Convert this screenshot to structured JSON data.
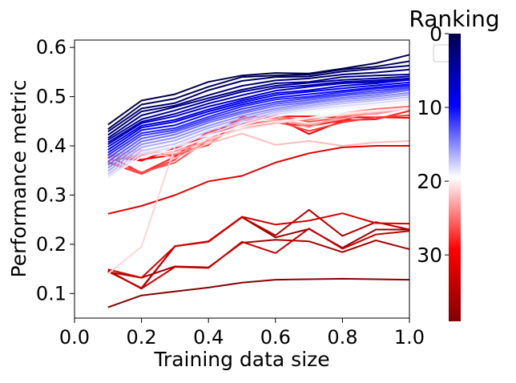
{
  "chart_data": {
    "type": "line",
    "title": "",
    "xlabel": "Training data size",
    "ylabel": "Performance metric",
    "xlim": [
      0.0,
      1.0
    ],
    "ylim": [
      0.05,
      0.615
    ],
    "xticks": [
      "0.0",
      "0.2",
      "0.4",
      "0.6",
      "0.8",
      "1.0"
    ],
    "yticks": [
      "0.1",
      "0.2",
      "0.3",
      "0.4",
      "0.5",
      "0.6"
    ],
    "grid": false,
    "legend": "upper-right, empty",
    "x": [
      0.1,
      0.2,
      0.3,
      0.4,
      0.5,
      0.6,
      0.7,
      0.8,
      0.9,
      1.0
    ],
    "colorbar": {
      "title": "Ranking",
      "ticks": [
        "0",
        "10",
        "20",
        "30"
      ],
      "range": [
        0,
        39
      ],
      "colormap": "seismic_r",
      "colors": [
        "#00004d",
        "#0000ff",
        "#ffffff",
        "#ff0000",
        "#800000"
      ]
    },
    "series": [
      {
        "rank": 0,
        "color": "#00004d",
        "values": [
          0.443,
          0.492,
          0.505,
          0.53,
          0.543,
          0.548,
          0.547,
          0.557,
          0.568,
          0.585
        ]
      },
      {
        "rank": 1,
        "color": "#000058",
        "values": [
          0.434,
          0.484,
          0.496,
          0.52,
          0.54,
          0.543,
          0.545,
          0.555,
          0.561,
          0.572
        ]
      },
      {
        "rank": 2,
        "color": "#000066",
        "values": [
          0.429,
          0.476,
          0.487,
          0.513,
          0.532,
          0.54,
          0.541,
          0.551,
          0.557,
          0.563
        ]
      },
      {
        "rank": 3,
        "color": "#000076",
        "values": [
          0.422,
          0.47,
          0.482,
          0.503,
          0.522,
          0.533,
          0.537,
          0.545,
          0.549,
          0.555
        ]
      },
      {
        "rank": 4,
        "color": "#000088",
        "values": [
          0.416,
          0.462,
          0.479,
          0.497,
          0.514,
          0.527,
          0.53,
          0.54,
          0.543,
          0.545
        ]
      },
      {
        "rank": 5,
        "color": "#00009a",
        "values": [
          0.412,
          0.454,
          0.472,
          0.492,
          0.51,
          0.522,
          0.528,
          0.534,
          0.537,
          0.541
        ]
      },
      {
        "rank": 6,
        "color": "#0000ae",
        "values": [
          0.407,
          0.449,
          0.465,
          0.486,
          0.503,
          0.518,
          0.523,
          0.53,
          0.533,
          0.537
        ]
      },
      {
        "rank": 7,
        "color": "#0000c4",
        "values": [
          0.403,
          0.446,
          0.46,
          0.48,
          0.496,
          0.512,
          0.52,
          0.527,
          0.53,
          0.536
        ]
      },
      {
        "rank": 8,
        "color": "#0000d8",
        "values": [
          0.398,
          0.441,
          0.453,
          0.474,
          0.492,
          0.507,
          0.513,
          0.522,
          0.527,
          0.534
        ]
      },
      {
        "rank": 9,
        "color": "#0000ee",
        "values": [
          0.392,
          0.437,
          0.449,
          0.47,
          0.488,
          0.503,
          0.51,
          0.517,
          0.523,
          0.529
        ]
      },
      {
        "rank": 10,
        "color": "#0a0aff",
        "values": [
          0.386,
          0.432,
          0.442,
          0.465,
          0.484,
          0.498,
          0.505,
          0.512,
          0.519,
          0.525
        ]
      },
      {
        "rank": 11,
        "color": "#2424ff",
        "values": [
          0.381,
          0.426,
          0.436,
          0.459,
          0.48,
          0.494,
          0.5,
          0.509,
          0.516,
          0.522
        ]
      },
      {
        "rank": 12,
        "color": "#3e3eff",
        "values": [
          0.375,
          0.421,
          0.432,
          0.455,
          0.475,
          0.489,
          0.497,
          0.505,
          0.512,
          0.519
        ]
      },
      {
        "rank": 13,
        "color": "#5858ff",
        "values": [
          0.368,
          0.415,
          0.428,
          0.451,
          0.47,
          0.485,
          0.493,
          0.502,
          0.508,
          0.516
        ]
      },
      {
        "rank": 14,
        "color": "#7272ff",
        "values": [
          0.361,
          0.409,
          0.423,
          0.447,
          0.466,
          0.481,
          0.489,
          0.498,
          0.504,
          0.513
        ]
      },
      {
        "rank": 15,
        "color": "#8c8cff",
        "values": [
          0.355,
          0.403,
          0.417,
          0.441,
          0.461,
          0.476,
          0.486,
          0.494,
          0.5,
          0.508
        ]
      },
      {
        "rank": 16,
        "color": "#a6a6ff",
        "values": [
          0.349,
          0.397,
          0.411,
          0.436,
          0.456,
          0.472,
          0.482,
          0.49,
          0.496,
          0.504
        ]
      },
      {
        "rank": 17,
        "color": "#c0c0ff",
        "values": [
          0.343,
          0.39,
          0.404,
          0.43,
          0.451,
          0.468,
          0.478,
          0.486,
          0.492,
          0.499
        ]
      },
      {
        "rank": 18,
        "color": "#dadaff",
        "values": [
          0.338,
          0.384,
          0.398,
          0.424,
          0.447,
          0.464,
          0.474,
          0.481,
          0.487,
          0.494
        ]
      },
      {
        "rank": 19,
        "color": "#f4f4ff",
        "values": [
          0.335,
          0.378,
          0.392,
          0.418,
          0.442,
          0.46,
          0.47,
          0.477,
          0.482,
          0.489
        ]
      },
      {
        "rank": 20,
        "color": "#fff0f0",
        "values": [
          0.372,
          0.387,
          0.405,
          0.421,
          0.438,
          0.449,
          0.457,
          0.466,
          0.472,
          0.477
        ]
      },
      {
        "rank": 21,
        "color": "#ffd6d6",
        "values": [
          0.14,
          0.195,
          0.398,
          0.414,
          0.434,
          0.445,
          0.456,
          0.463,
          0.47,
          0.475
        ]
      },
      {
        "rank": 22,
        "color": "#ffbcbc",
        "values": [
          0.38,
          0.392,
          0.375,
          0.405,
          0.425,
          0.402,
          0.41,
          0.4,
          0.407,
          0.41
        ]
      },
      {
        "rank": 23,
        "color": "#ffa2a2",
        "values": [
          0.377,
          0.385,
          0.388,
          0.41,
          0.44,
          0.452,
          0.443,
          0.455,
          0.468,
          0.476
        ]
      },
      {
        "rank": 24,
        "color": "#ff8888",
        "values": [
          0.374,
          0.381,
          0.383,
          0.404,
          0.447,
          0.457,
          0.438,
          0.462,
          0.465,
          0.477
        ]
      },
      {
        "rank": 25,
        "color": "#ff6e6e",
        "values": [
          0.371,
          0.378,
          0.391,
          0.417,
          0.452,
          0.456,
          0.453,
          0.466,
          0.475,
          0.48
        ]
      },
      {
        "rank": 26,
        "color": "#ff5454",
        "values": [
          0.368,
          0.346,
          0.366,
          0.412,
          0.455,
          0.462,
          0.449,
          0.458,
          0.473,
          0.475
        ]
      },
      {
        "rank": 27,
        "color": "#ff3a3a",
        "values": [
          0.366,
          0.343,
          0.372,
          0.426,
          0.444,
          0.451,
          0.43,
          0.448,
          0.458,
          0.462
        ]
      },
      {
        "rank": 28,
        "color": "#ff2020",
        "values": [
          0.38,
          0.345,
          0.378,
          0.43,
          0.438,
          0.447,
          0.44,
          0.452,
          0.454,
          0.471
        ]
      },
      {
        "rank": 29,
        "color": "#ff0606",
        "values": [
          0.382,
          0.372,
          0.382,
          0.402,
          0.458,
          0.46,
          0.46,
          0.458,
          0.458,
          0.457
        ]
      },
      {
        "rank": 30,
        "color": "#f00000",
        "values": [
          0.378,
          0.37,
          0.395,
          0.42,
          0.458,
          0.458,
          0.424,
          0.451,
          0.474,
          0.475
        ]
      },
      {
        "rank": 31,
        "color": "#e40000",
        "values": [
          0.262,
          0.278,
          0.3,
          0.328,
          0.339,
          0.366,
          0.385,
          0.397,
          0.4,
          0.4
        ]
      },
      {
        "rank": 32,
        "color": "#d40000",
        "values": [
          0.149,
          0.132,
          0.196,
          0.206,
          0.256,
          0.24,
          0.248,
          0.263,
          0.243,
          0.242
        ]
      },
      {
        "rank": 33,
        "color": "#c40000",
        "values": [
          0.147,
          0.11,
          0.154,
          0.152,
          0.205,
          0.182,
          0.232,
          0.191,
          0.22,
          0.227
        ]
      },
      {
        "rank": 34,
        "color": "#b40000",
        "values": [
          0.145,
          0.111,
          0.196,
          0.206,
          0.255,
          0.218,
          0.27,
          0.217,
          0.245,
          0.23
        ]
      },
      {
        "rank": 35,
        "color": "#a60000",
        "values": [
          0.144,
          0.132,
          0.155,
          0.153,
          0.203,
          0.209,
          0.206,
          0.184,
          0.208,
          0.19
        ]
      },
      {
        "rank": 36,
        "color": "#980000",
        "values": [
          0.146,
          0.11,
          0.196,
          0.205,
          0.255,
          0.214,
          0.231,
          0.193,
          0.23,
          0.23
        ]
      },
      {
        "rank": 37,
        "color": "#8a0000",
        "values": [
          0.072,
          0.096,
          0.104,
          0.112,
          0.122,
          0.128,
          0.129,
          0.13,
          0.129,
          0.128
        ]
      }
    ]
  }
}
